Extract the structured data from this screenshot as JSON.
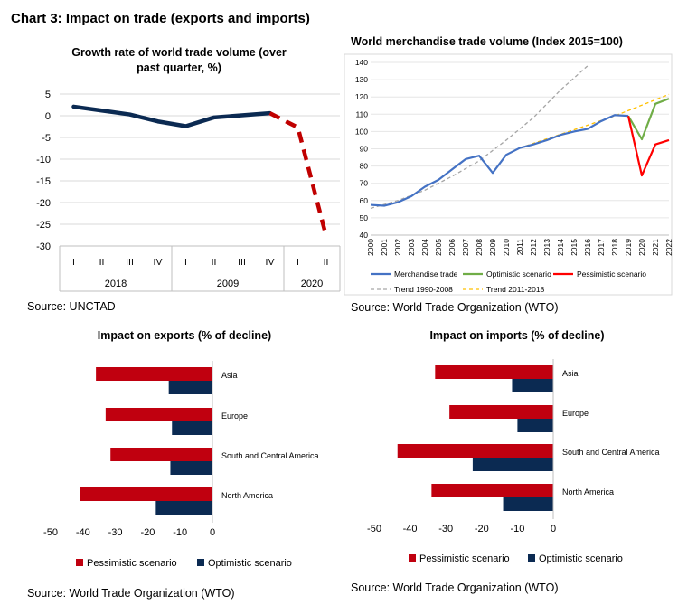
{
  "page_title": "Chart 3: Impact on trade (exports and imports)",
  "colors": {
    "navy": "#0b2a52",
    "dark_red": "#c00000",
    "red": "#ff0000",
    "blue": "#4472c4",
    "green": "#70ad47",
    "gray_dash": "#a6a6a6",
    "yellow_dash": "#ffc000",
    "bar_red": "#c0000f",
    "bar_navy": "#0b2a52"
  },
  "chart_data": [
    {
      "id": "growth",
      "type": "line",
      "title": "Growth rate of world trade volume (over past quarter, %)",
      "ylim": [
        -30,
        5
      ],
      "yticks": [
        5,
        0,
        -5,
        -10,
        -15,
        -20,
        -25,
        -30
      ],
      "categories": [
        "I",
        "II",
        "III",
        "IV",
        "I",
        "II",
        "III",
        "IV",
        "I",
        "II"
      ],
      "groups": [
        {
          "label": "2018",
          "start": 0,
          "end": 3
        },
        {
          "label": "2009",
          "start": 4,
          "end": 7
        },
        {
          "label": "2020",
          "start": 8,
          "end": 9
        }
      ],
      "series": [
        {
          "style": "solid",
          "values": [
            2.1,
            1.2,
            0.3,
            -1.3,
            -2.4,
            -0.4,
            0.1,
            0.6,
            null,
            null
          ]
        },
        {
          "style": "dashed",
          "values": [
            null,
            null,
            null,
            null,
            null,
            null,
            null,
            0.6,
            -2.7,
            -27.5
          ]
        }
      ],
      "source": "Source: UNCTAD"
    },
    {
      "id": "merch",
      "type": "line",
      "title": "World merchandise trade volume (Index 2015=100)",
      "ylim": [
        40,
        140
      ],
      "yticks": [
        140,
        130,
        120,
        110,
        100,
        90,
        80,
        70,
        60,
        50,
        40
      ],
      "xlabels": [
        "2000",
        "2001",
        "2002",
        "2003",
        "2004",
        "2005",
        "2006",
        "2007",
        "2008",
        "2009",
        "2010",
        "2011",
        "2012",
        "2013",
        "2014",
        "2015",
        "2016",
        "2017",
        "2018",
        "2019",
        "2020",
        "2021",
        "2022"
      ],
      "series": [
        {
          "name": "Merchandise trade",
          "points": [
            [
              2000,
              57.5
            ],
            [
              2001,
              57
            ],
            [
              2002,
              59
            ],
            [
              2003,
              62.5
            ],
            [
              2004,
              68
            ],
            [
              2005,
              72
            ],
            [
              2006,
              78
            ],
            [
              2007,
              84
            ],
            [
              2008,
              86
            ],
            [
              2009,
              76
            ],
            [
              2010,
              86.5
            ],
            [
              2011,
              90.5
            ],
            [
              2012,
              92.5
            ],
            [
              2013,
              95
            ],
            [
              2014,
              98
            ],
            [
              2015,
              100
            ],
            [
              2016,
              101.5
            ],
            [
              2017,
              106
            ],
            [
              2018,
              109.5
            ],
            [
              2019,
              109
            ]
          ]
        },
        {
          "name": "Optimistic scenario",
          "points": [
            [
              2019,
              109
            ],
            [
              2020,
              95.5
            ],
            [
              2021,
              116
            ],
            [
              2022,
              119
            ]
          ]
        },
        {
          "name": "Pessimistic scenario",
          "points": [
            [
              2019,
              109
            ],
            [
              2020,
              74.5
            ],
            [
              2021,
              92.5
            ],
            [
              2022,
              95
            ]
          ]
        },
        {
          "name": "Trend 1990-2008",
          "points": [
            [
              2000,
              55.5
            ],
            [
              2002,
              60
            ],
            [
              2004,
              66
            ],
            [
              2006,
              74
            ],
            [
              2008,
              83
            ],
            [
              2010,
              95
            ],
            [
              2012,
              108
            ],
            [
              2014,
              124
            ],
            [
              2016,
              138
            ]
          ]
        },
        {
          "name": "Trend 2011-2018",
          "points": [
            [
              2011,
              90.5
            ],
            [
              2015,
              101
            ],
            [
              2018,
              109
            ],
            [
              2022,
              121.5
            ]
          ]
        }
      ],
      "legend": [
        "Merchandise trade",
        "Optimistic scenario",
        "Pessimistic scenario",
        "Trend 1990-2008",
        "Trend 2011-2018"
      ],
      "source": "Source: World Trade Organization (WTO)"
    },
    {
      "id": "exports",
      "type": "bar",
      "orientation": "horizontal",
      "title": "Impact on exports (% of decline)",
      "xlim": [
        -50,
        0
      ],
      "xticks": [
        -50,
        -40,
        -30,
        -20,
        -10,
        0
      ],
      "categories": [
        "Asia",
        "Europe",
        "South and Central America",
        "North America"
      ],
      "series": [
        {
          "name": "Pessimistic scenario",
          "values": [
            -36,
            -33,
            -31.5,
            -41
          ]
        },
        {
          "name": "Optimistic scenario",
          "values": [
            -13.5,
            -12.5,
            -13,
            -17.5
          ]
        }
      ],
      "source": "Source: World Trade Organization (WTO)"
    },
    {
      "id": "imports",
      "type": "bar",
      "orientation": "horizontal",
      "title": "Impact on imports (% of decline)",
      "xlim": [
        -50,
        0
      ],
      "xticks": [
        -50,
        -40,
        -30,
        -20,
        -10,
        0
      ],
      "categories": [
        "Asia",
        "Europe",
        "South and Central America",
        "North America"
      ],
      "series": [
        {
          "name": "Pessimistic scenario",
          "values": [
            -33,
            -29,
            -43.5,
            -34
          ]
        },
        {
          "name": "Optimistic scenario",
          "values": [
            -11.5,
            -10,
            -22.5,
            -14
          ]
        }
      ],
      "source": "Source: World Trade Organization (WTO)"
    }
  ]
}
